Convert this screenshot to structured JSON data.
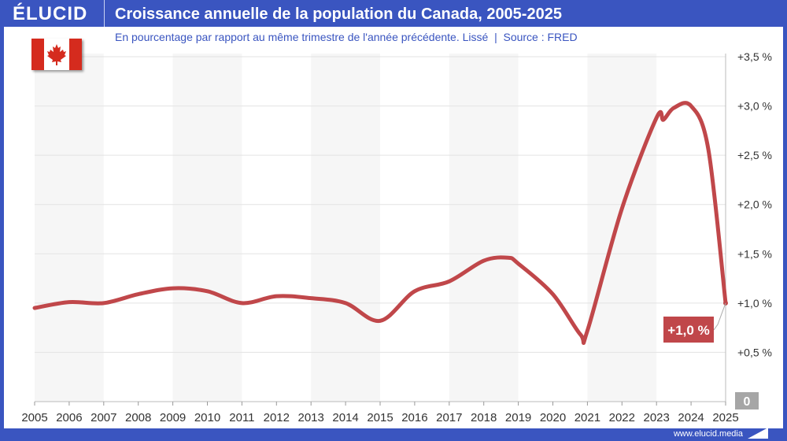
{
  "header": {
    "logo": "ÉLUCID",
    "title": "Croissance annuelle de la population du Canada, 2005-2025"
  },
  "subtitle": "En pourcentage par rapport au même trimestre de l'année précédente. Lissé  |  Source : FRED",
  "footer": {
    "url": "www.elucid.media"
  },
  "colors": {
    "brand": "#3a55c0",
    "line": "#c0474a",
    "band": "#f6f6f6",
    "zero_badge": "#a6a6a6"
  },
  "flag_icon": "canada-flag",
  "chart_data": {
    "type": "line",
    "title": "Croissance annuelle de la population du Canada, 2005-2025",
    "xlim": [
      2005,
      2025
    ],
    "ylim": [
      0,
      3.5
    ],
    "x_ticks": [
      "2005",
      "2006",
      "2007",
      "2008",
      "2009",
      "2010",
      "2011",
      "2012",
      "2013",
      "2014",
      "2015",
      "2016",
      "2017",
      "2018",
      "2019",
      "2020",
      "2021",
      "2022",
      "2023",
      "2024",
      "2025"
    ],
    "y_ticks": [
      {
        "v": 0.5,
        "label": "+0,5 %"
      },
      {
        "v": 1.0,
        "label": "+1,0 %"
      },
      {
        "v": 1.5,
        "label": "+1,5 %"
      },
      {
        "v": 2.0,
        "label": "+2,0 %"
      },
      {
        "v": 2.5,
        "label": "+2,5 %"
      },
      {
        "v": 3.0,
        "label": "+3,0 %"
      },
      {
        "v": 3.5,
        "label": "+3,5 %"
      }
    ],
    "zero_label": "0",
    "grid": true,
    "y_axis_side": "right",
    "shaded_periods": [
      [
        2005,
        2007
      ],
      [
        2009,
        2011
      ],
      [
        2013,
        2015
      ],
      [
        2017,
        2019
      ],
      [
        2021,
        2023
      ]
    ],
    "x": [
      2005,
      2006,
      2007,
      2008,
      2009,
      2010,
      2011,
      2012,
      2013,
      2014,
      2015,
      2016,
      2017,
      2018,
      2018.7,
      2019,
      2020,
      2020.8,
      2021,
      2022,
      2023,
      2023.2,
      2023.5,
      2024,
      2024.5,
      2025
    ],
    "y": [
      0.95,
      1.01,
      1.0,
      1.09,
      1.15,
      1.12,
      1.0,
      1.07,
      1.05,
      1.0,
      0.82,
      1.12,
      1.22,
      1.43,
      1.46,
      1.4,
      1.09,
      0.68,
      0.72,
      1.96,
      2.88,
      2.86,
      2.98,
      3.0,
      2.56,
      1.0
    ],
    "last_value_label": "+1,0 %"
  }
}
